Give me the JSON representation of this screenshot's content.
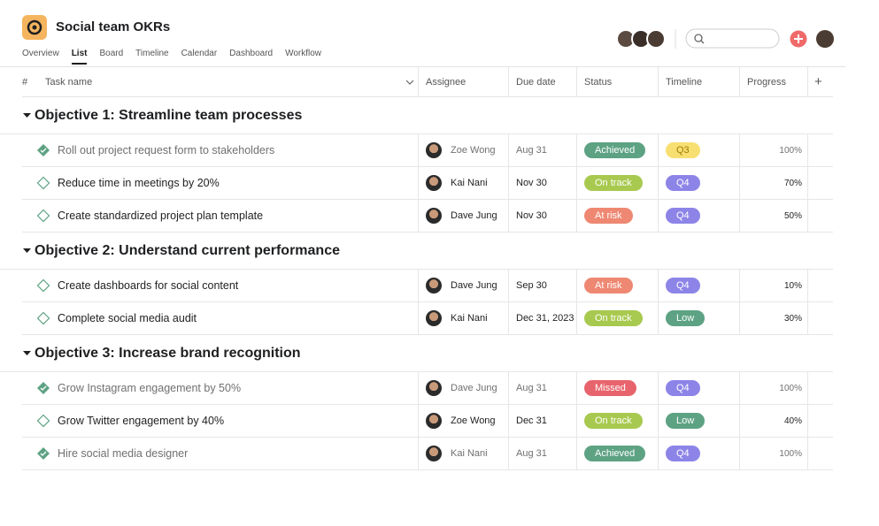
{
  "header": {
    "title": "Social team OKRs",
    "tabs": [
      "Overview",
      "List",
      "Board",
      "Timeline",
      "Calendar",
      "Dashboard",
      "Workflow"
    ],
    "active_tab": 1
  },
  "table": {
    "columns": [
      "#",
      "Task name",
      "Assignee",
      "Due date",
      "Status",
      "Timeline",
      "Progress",
      "+"
    ],
    "sections": [
      {
        "title": "Objective 1: Streamline team processes",
        "rows": [
          {
            "task": "Roll out project request form to stakeholders",
            "completed": true,
            "assignee": "Zoe Wong",
            "due": "Aug 31",
            "status": "Achieved",
            "status_color": "#5da283",
            "timeline": "Q3",
            "timeline_color": "#f8df72",
            "progress": "100%"
          },
          {
            "task": "Reduce time in meetings by 20%",
            "completed": false,
            "assignee": "Kai Nani",
            "due": "Nov 30",
            "status": "On track",
            "status_color": "#a8c94f",
            "timeline": "Q4",
            "timeline_color": "#8d84e8",
            "progress": "70%"
          },
          {
            "task": "Create standardized project plan template",
            "completed": false,
            "assignee": "Dave Jung",
            "due": "Nov 30",
            "status": "At risk",
            "status_color": "#ee8872",
            "timeline": "Q4",
            "timeline_color": "#8d84e8",
            "progress": "50%"
          }
        ]
      },
      {
        "title": "Objective 2: Understand current performance",
        "rows": [
          {
            "task": "Create dashboards for social content",
            "completed": false,
            "assignee": "Dave Jung",
            "due": "Sep 30",
            "status": "At risk",
            "status_color": "#ee8872",
            "timeline": "Q4",
            "timeline_color": "#8d84e8",
            "progress": "10%"
          },
          {
            "task": "Complete social media audit",
            "completed": false,
            "assignee": "Kai Nani",
            "due": "Dec 31, 2023",
            "status": "On track",
            "status_color": "#a8c94f",
            "timeline": "Low",
            "timeline_color": "#5da283",
            "progress": "30%"
          }
        ]
      },
      {
        "title": "Objective 3: Increase brand recognition",
        "rows": [
          {
            "task": "Grow Instagram engagement by 50%",
            "completed": true,
            "assignee": "Dave Jung",
            "due": "Aug 31",
            "status": "Missed",
            "status_color": "#e8646c",
            "timeline": "Q4",
            "timeline_color": "#8d84e8",
            "progress": "100%"
          },
          {
            "task": "Grow Twitter engagement by 40%",
            "completed": false,
            "assignee": "Zoe Wong",
            "due": "Dec 31",
            "status": "On track",
            "status_color": "#a8c94f",
            "timeline": "Low",
            "timeline_color": "#5da283",
            "progress": "40%"
          },
          {
            "task": "Hire social media designer",
            "completed": true,
            "assignee": "Kai Nani",
            "due": "Aug 31",
            "status": "Achieved",
            "status_color": "#5da283",
            "timeline": "Q4",
            "timeline_color": "#8d84e8",
            "progress": "100%"
          }
        ]
      }
    ]
  }
}
